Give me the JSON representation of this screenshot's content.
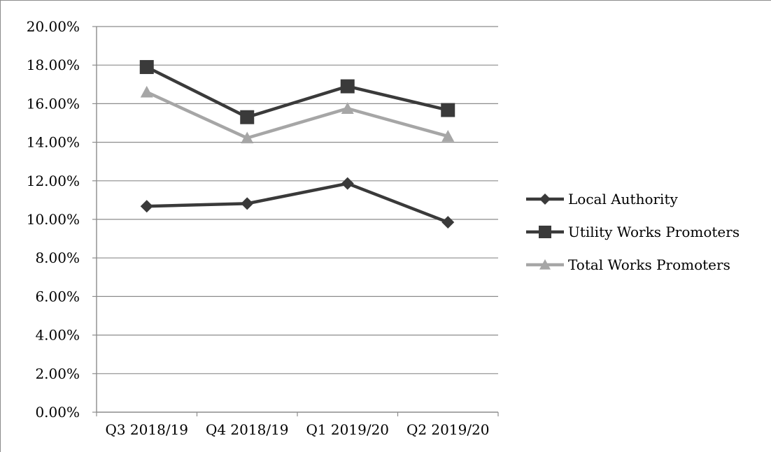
{
  "chart_data": {
    "type": "line",
    "categories": [
      "Q3 2018/19",
      "Q4 2018/19",
      "Q1 2019/20",
      "Q2 2019/20"
    ],
    "ylim": [
      0,
      0.2
    ],
    "yticks": [
      {
        "value": 0.0,
        "label": "0.00%"
      },
      {
        "value": 0.02,
        "label": "2.00%"
      },
      {
        "value": 0.04,
        "label": "4.00%"
      },
      {
        "value": 0.06,
        "label": "6.00%"
      },
      {
        "value": 0.08,
        "label": "8.00%"
      },
      {
        "value": 0.1,
        "label": "10.00%"
      },
      {
        "value": 0.12,
        "label": "12.00%"
      },
      {
        "value": 0.14,
        "label": "14.00%"
      },
      {
        "value": 0.16,
        "label": "16.00%"
      },
      {
        "value": 0.18,
        "label": "18.00%"
      },
      {
        "value": 0.2,
        "label": "20.00%"
      }
    ],
    "grid": true,
    "legend_position": "right",
    "series": [
      {
        "name": "Local Authority",
        "values": [
          0.1068,
          0.1082,
          0.1186,
          0.0985
        ],
        "color": "#3a3a3a",
        "marker": "diamond"
      },
      {
        "name": "Utility Works Promoters",
        "values": [
          0.179,
          0.153,
          0.169,
          0.1567
        ],
        "color": "#3a3a3a",
        "marker": "square"
      },
      {
        "name": "Total Works Promoters",
        "values": [
          0.166,
          0.1422,
          0.1575,
          0.1431
        ],
        "color": "#a6a6a6",
        "marker": "triangle"
      }
    ]
  }
}
